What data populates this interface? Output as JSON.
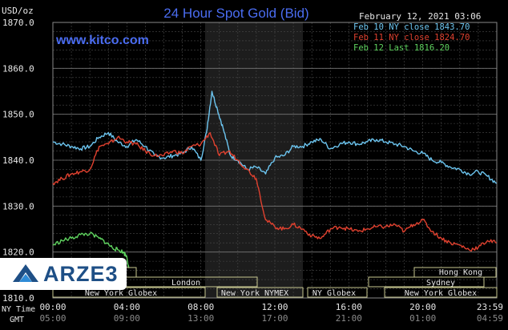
{
  "header": {
    "title": "24 Hour Spot Gold (Bid)",
    "unit": "USD/oz",
    "date": "February 12, 2021 03:06",
    "website": "www.kitco.com"
  },
  "watermark": {
    "text": "ARZE3"
  },
  "sessions": {
    "new_york_globex": "New York Globex",
    "london": "London",
    "new_york_nymex": "New York NYMEX",
    "ny_globex": "NY Globex",
    "sydney": "Sydney",
    "hong_kong": "Hong Kong",
    "new_york_globex_right": "New York Globex"
  },
  "axis_labels": {
    "ny_time": "NY Time",
    "gmt": "GMT"
  },
  "colors": {
    "feb10": "#6cc5f0",
    "feb11": "#e0412f",
    "feb12": "#5fd35f",
    "title": "#4a6cf0",
    "grid": "#555555",
    "session": "#c8c891"
  },
  "chart_data": {
    "type": "line",
    "title": "24 Hour Spot Gold (Bid)",
    "ylabel": "USD/oz",
    "ylim": [
      1810,
      1870
    ],
    "yticks": [
      "1870.0",
      "1860.0",
      "1850.0",
      "1840.0",
      "1830.0",
      "1820.0",
      "1810.0"
    ],
    "xticks_ny": [
      "00:00",
      "04:00",
      "08:00",
      "12:00",
      "16:00",
      "20:00",
      "23:59"
    ],
    "xticks_gmt": [
      "05:00",
      "09:00",
      "13:00",
      "17:00",
      "21:00",
      "01:00",
      "04:59"
    ],
    "grid": true,
    "legend_position": "top-right",
    "series": [
      {
        "name": "Feb 10 NY close 1843.70",
        "color": "#6cc5f0",
        "x": [
          0,
          0.5,
          1,
          1.5,
          2,
          2.5,
          3,
          3.5,
          4,
          4.5,
          5,
          5.5,
          6,
          6.5,
          7,
          7.5,
          8,
          8.3,
          8.6,
          8.9,
          9.2,
          9.6,
          10,
          10.5,
          11,
          11.5,
          12,
          12.5,
          13,
          13.5,
          14,
          14.5,
          15,
          15.5,
          16,
          16.5,
          17,
          17.5,
          18,
          18.5,
          19,
          19.5,
          20,
          20.5,
          21,
          21.5,
          22,
          22.5,
          23,
          23.5,
          23.99
        ],
        "y": [
          1844,
          1843.5,
          1843,
          1842.5,
          1843,
          1845,
          1846,
          1844,
          1843,
          1844.5,
          1843,
          1841,
          1840.5,
          1841,
          1841.5,
          1843,
          1840,
          1846,
          1855,
          1851,
          1847,
          1841,
          1840,
          1838,
          1838.5,
          1837,
          1840.5,
          1841,
          1843,
          1843,
          1844,
          1844.5,
          1842.5,
          1843.5,
          1844,
          1843.5,
          1844,
          1844.5,
          1844,
          1843.5,
          1843,
          1842,
          1841.5,
          1840,
          1839.5,
          1838.5,
          1838,
          1837,
          1837.5,
          1836.5,
          1835
        ]
      },
      {
        "name": "Feb 11 NY close 1824.70",
        "color": "#e0412f",
        "x": [
          0,
          0.5,
          1,
          1.5,
          2,
          2.5,
          3,
          3.5,
          4,
          4.5,
          5,
          5.5,
          6,
          6.5,
          7,
          7.5,
          8,
          8.5,
          9,
          9.5,
          10,
          10.5,
          11,
          11.5,
          12,
          12.5,
          13,
          13.5,
          14,
          14.5,
          15,
          15.5,
          16,
          16.5,
          17,
          17.5,
          18,
          18.5,
          19,
          19.5,
          20,
          20.5,
          21,
          21.5,
          22,
          22.5,
          23,
          23.5,
          23.99
        ],
        "y": [
          1835,
          1836,
          1837,
          1837.5,
          1838,
          1843,
          1843.5,
          1845,
          1844,
          1843.5,
          1842,
          1841,
          1841,
          1842,
          1841.5,
          1843,
          1843.5,
          1846,
          1841,
          1842,
          1840,
          1838,
          1836,
          1827,
          1825.5,
          1825,
          1826,
          1825,
          1823.5,
          1823,
          1825,
          1825.5,
          1825,
          1824.5,
          1825,
          1825.5,
          1825.5,
          1826,
          1824.5,
          1826,
          1827,
          1824.5,
          1823,
          1822,
          1821.5,
          1820.5,
          1821,
          1822.5,
          1822
        ]
      },
      {
        "name": "Feb 12 Last 1816.20",
        "color": "#5fd35f",
        "x": [
          0,
          0.5,
          1,
          1.5,
          2,
          2.5,
          2.9,
          3.2,
          3.5,
          3.8,
          4.0,
          4.1
        ],
        "y": [
          1821.5,
          1822.5,
          1823,
          1823.8,
          1824,
          1823,
          1822,
          1821,
          1820.5,
          1820,
          1819,
          1816.5
        ]
      }
    ]
  }
}
